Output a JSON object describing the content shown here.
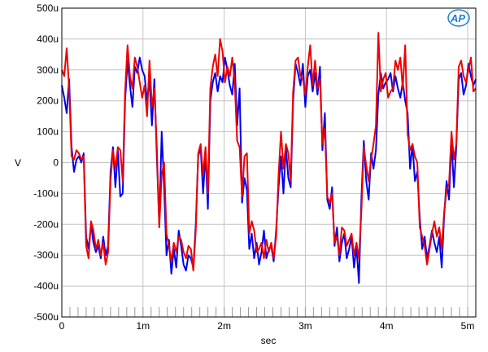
{
  "chart_data": {
    "type": "line",
    "xlabel": "sec",
    "ylabel": "V",
    "xlim": [
      0,
      0.0051
    ],
    "ylim": [
      -0.0005,
      0.0005
    ],
    "grid": true,
    "x_ticks": [
      {
        "value": 0,
        "label": "0"
      },
      {
        "value": 0.001,
        "label": "1m"
      },
      {
        "value": 0.002,
        "label": "2m"
      },
      {
        "value": 0.003,
        "label": "3m"
      },
      {
        "value": 0.004,
        "label": "4m"
      },
      {
        "value": 0.005,
        "label": "5m"
      }
    ],
    "y_ticks": [
      {
        "value": 0.0005,
        "label": "500u"
      },
      {
        "value": 0.0004,
        "label": "400u"
      },
      {
        "value": 0.0003,
        "label": "300u"
      },
      {
        "value": 0.0002,
        "label": "200u"
      },
      {
        "value": 0.0001,
        "label": "100u"
      },
      {
        "value": 0,
        "label": "0"
      },
      {
        "value": -0.0001,
        "label": "-100u"
      },
      {
        "value": -0.0002,
        "label": "-200u"
      },
      {
        "value": -0.0003,
        "label": "-300u"
      },
      {
        "value": -0.0004,
        "label": "-400u"
      },
      {
        "value": -0.0005,
        "label": "-500u"
      }
    ],
    "series": [
      {
        "color": "#0000ee",
        "x": [
          0,
          3e-05,
          6e-05,
          9e-05,
          0.00012,
          0.00015,
          0.00018,
          0.00021,
          0.00024,
          0.00027,
          0.0003,
          0.00033,
          0.00036,
          0.00039,
          0.00042,
          0.00045,
          0.00048,
          0.00051,
          0.00054,
          0.00057,
          0.0006,
          0.00063,
          0.00066,
          0.00069,
          0.00072,
          0.00075,
          0.00078,
          0.00081,
          0.00084,
          0.00087,
          0.0009,
          0.00093,
          0.00096,
          0.00099,
          0.00102,
          0.00105,
          0.00108,
          0.00111,
          0.00114,
          0.00117,
          0.0012,
          0.00123,
          0.00126,
          0.00129,
          0.00132,
          0.00135,
          0.00138,
          0.00141,
          0.00144,
          0.00147,
          0.0015,
          0.00153,
          0.00156,
          0.00159,
          0.00162,
          0.00165,
          0.00168,
          0.00171,
          0.00174,
          0.00177,
          0.0018,
          0.00183,
          0.00186,
          0.00189,
          0.00192,
          0.00195,
          0.00198,
          0.00201,
          0.00204,
          0.00207,
          0.0021,
          0.00213,
          0.00216,
          0.00219,
          0.00222,
          0.00225,
          0.00228,
          0.00231,
          0.00234,
          0.00237,
          0.0024,
          0.00243,
          0.00246,
          0.00249,
          0.00252,
          0.00255,
          0.00258,
          0.00261,
          0.00264,
          0.00267,
          0.0027,
          0.00273,
          0.00276,
          0.00279,
          0.00282,
          0.00285,
          0.00288,
          0.00291,
          0.00294,
          0.00297,
          0.003,
          0.00303,
          0.00306,
          0.00309,
          0.00312,
          0.00315,
          0.00318,
          0.00321,
          0.00324,
          0.00327,
          0.0033,
          0.00333,
          0.00336,
          0.00339,
          0.00342,
          0.00345,
          0.00348,
          0.00351,
          0.00354,
          0.00357,
          0.0036,
          0.00363,
          0.00366,
          0.00369,
          0.00372,
          0.00375,
          0.00378,
          0.00381,
          0.00384,
          0.00387,
          0.0039,
          0.00393,
          0.00396,
          0.00399,
          0.00402,
          0.00405,
          0.00408,
          0.00411,
          0.00414,
          0.00417,
          0.0042,
          0.00423,
          0.00426,
          0.00429,
          0.00432,
          0.00435,
          0.00438,
          0.00441,
          0.00444,
          0.00447,
          0.0045,
          0.00453,
          0.00456,
          0.00459,
          0.00462,
          0.00465,
          0.00468,
          0.00471,
          0.00474,
          0.00477,
          0.0048,
          0.00483,
          0.00486,
          0.00489,
          0.00492,
          0.00495,
          0.00498,
          0.00501,
          0.00504,
          0.00507,
          0.0051
        ],
        "y": [
          0.00025,
          0.00021,
          0.00016,
          0.00027,
          5e-05,
          -3e-05,
          1e-05,
          2e-05,
          0,
          3e-05,
          -0.00024,
          -0.00028,
          -0.0002,
          -0.00026,
          -0.00029,
          -0.00027,
          -0.00031,
          -0.00024,
          -0.0003,
          -0.00027,
          -3e-05,
          5e-05,
          -8e-05,
          4e-05,
          -0.00011,
          -0.0001,
          0.0002,
          0.00033,
          0.00025,
          0.00018,
          0.00031,
          0.00029,
          0.00034,
          0.0003,
          0.00028,
          0.0002,
          0.00027,
          0.00012,
          0.00027,
          2e-05,
          -0.0002,
          0.0001,
          -8e-05,
          -0.0003,
          -0.00025,
          -0.00036,
          -0.00028,
          -0.00034,
          -0.00022,
          -0.00027,
          -0.00033,
          -0.00035,
          -0.0003,
          -0.00031,
          -0.00034,
          -0.0002,
          2e-05,
          5e-05,
          -0.0001,
          3e-05,
          -0.00015,
          0.0002,
          0.00026,
          0.00029,
          0.00023,
          0.00028,
          0.00026,
          0.00034,
          0.0003,
          0.00025,
          0.00022,
          0.00032,
          0.00012,
          0.00024,
          -0.00013,
          -5e-05,
          -9e-05,
          -0.00028,
          -0.00023,
          -0.00031,
          -0.00026,
          -0.00033,
          -0.00029,
          -0.00022,
          -0.00031,
          -0.00028,
          -0.00027,
          -0.00032,
          -0.00022,
          -8e-05,
          2e-05,
          -0.0001,
          5e-05,
          -5e-05,
          -8e-05,
          0.0002,
          0.00032,
          0.00029,
          0.00025,
          0.00032,
          0.00018,
          0.00028,
          0.0003,
          0.00023,
          0.00029,
          0.00022,
          0.00031,
          4e-05,
          0.00016,
          -0.00012,
          -0.00015,
          -8e-05,
          -0.00027,
          -0.00021,
          -0.00032,
          -0.00026,
          -0.00023,
          -0.00031,
          -0.00028,
          -0.00024,
          -0.00034,
          -0.00027,
          -0.00039,
          -0.00012,
          7e-05,
          -6e-05,
          -0.00012,
          3e-05,
          -2e-05,
          4e-05,
          0.00022,
          0.00029,
          0.00024,
          0.00026,
          0.00027,
          0.00029,
          0.00023,
          0.00028,
          0.00024,
          0.00021,
          0.00026,
          0.0002,
          0.00016,
          -2e-05,
          6e-05,
          -6e-05,
          -3e-05,
          -0.00018,
          -0.00028,
          -0.00024,
          -0.00031,
          -0.00027,
          -0.00022,
          -0.00026,
          -0.00029,
          -0.00024,
          -0.00034,
          -0.00017,
          -6e-05,
          -0.00012,
          7e-05,
          -8e-05,
          5e-05,
          0.00027,
          0.00029,
          0.00022,
          0.00025,
          0.00032,
          0.00028,
          0.00025,
          0.00027
        ]
      },
      {
        "color": "#ee0000",
        "x": [
          0,
          3e-05,
          6e-05,
          9e-05,
          0.00012,
          0.00015,
          0.00018,
          0.00021,
          0.00024,
          0.00027,
          0.0003,
          0.00033,
          0.00036,
          0.00039,
          0.00042,
          0.00045,
          0.00048,
          0.00051,
          0.00054,
          0.00057,
          0.0006,
          0.00063,
          0.00066,
          0.00069,
          0.00072,
          0.00075,
          0.00078,
          0.00081,
          0.00084,
          0.00087,
          0.0009,
          0.00093,
          0.00096,
          0.00099,
          0.00102,
          0.00105,
          0.00108,
          0.00111,
          0.00114,
          0.00117,
          0.0012,
          0.00123,
          0.00126,
          0.00129,
          0.00132,
          0.00135,
          0.00138,
          0.00141,
          0.00144,
          0.00147,
          0.0015,
          0.00153,
          0.00156,
          0.00159,
          0.00162,
          0.00165,
          0.00168,
          0.00171,
          0.00174,
          0.00177,
          0.0018,
          0.00183,
          0.00186,
          0.00189,
          0.00192,
          0.00195,
          0.00198,
          0.00201,
          0.00204,
          0.00207,
          0.0021,
          0.00213,
          0.00216,
          0.00219,
          0.00222,
          0.00225,
          0.00228,
          0.00231,
          0.00234,
          0.00237,
          0.0024,
          0.00243,
          0.00246,
          0.00249,
          0.00252,
          0.00255,
          0.00258,
          0.00261,
          0.00264,
          0.00267,
          0.0027,
          0.00273,
          0.00276,
          0.00279,
          0.00282,
          0.00285,
          0.00288,
          0.00291,
          0.00294,
          0.00297,
          0.003,
          0.00303,
          0.00306,
          0.00309,
          0.00312,
          0.00315,
          0.00318,
          0.00321,
          0.00324,
          0.00327,
          0.0033,
          0.00333,
          0.00336,
          0.00339,
          0.00342,
          0.00345,
          0.00348,
          0.00351,
          0.00354,
          0.00357,
          0.0036,
          0.00363,
          0.00366,
          0.00369,
          0.00372,
          0.00375,
          0.00378,
          0.00381,
          0.00384,
          0.00387,
          0.0039,
          0.00393,
          0.00396,
          0.00399,
          0.00402,
          0.00405,
          0.00408,
          0.00411,
          0.00414,
          0.00417,
          0.0042,
          0.00423,
          0.00426,
          0.00429,
          0.00432,
          0.00435,
          0.00438,
          0.00441,
          0.00444,
          0.00447,
          0.0045,
          0.00453,
          0.00456,
          0.00459,
          0.00462,
          0.00465,
          0.00468,
          0.00471,
          0.00474,
          0.00477,
          0.0048,
          0.00483,
          0.00486,
          0.00489,
          0.00492,
          0.00495,
          0.00498,
          0.00501,
          0.00504,
          0.00507,
          0.0051
        ],
        "y": [
          0.0003,
          0.00028,
          0.00037,
          0.00024,
          2e-05,
          1e-05,
          4e-05,
          3e-05,
          1e-05,
          2e-05,
          -0.00027,
          -0.00031,
          -0.00019,
          -0.00022,
          -0.00028,
          -0.00025,
          -0.0003,
          -0.00026,
          -0.00033,
          -0.00029,
          -6e-05,
          4e-05,
          -2e-05,
          5e-05,
          4e-05,
          -6e-05,
          0.00023,
          0.00038,
          0.00028,
          0.00024,
          0.00034,
          0.00031,
          0.00026,
          0.00021,
          0.00025,
          0.00015,
          0.00033,
          0.00018,
          0.00024,
          5e-05,
          -0.00021,
          -4e-05,
          0,
          -0.00023,
          -0.00027,
          -0.00032,
          -0.00026,
          -0.00029,
          -0.00024,
          -0.00025,
          -0.00029,
          -0.00031,
          -0.00027,
          -0.00028,
          -0.00035,
          -0.00022,
          3e-05,
          6e-05,
          -4e-05,
          5e-05,
          -0.0001,
          0.00024,
          0.00031,
          0.00035,
          0.00028,
          0.0004,
          0.00036,
          0.00026,
          0.00031,
          0.00028,
          0.00034,
          0.00026,
          7e-05,
          5e-05,
          -0.00011,
          2e-05,
          3e-05,
          -0.00023,
          -0.00019,
          -0.00022,
          -0.00029,
          -0.00028,
          -0.00026,
          -0.00031,
          -0.00025,
          -0.00029,
          -0.00026,
          -0.00031,
          -0.00024,
          -4e-05,
          0.0001,
          -2e-05,
          6e-05,
          3e-05,
          -6e-05,
          0.00023,
          0.00033,
          0.00034,
          0.00028,
          0.00027,
          0.00022,
          0.00031,
          0.00038,
          0.00025,
          0.00033,
          0.00024,
          0.00027,
          6e-05,
          0.00011,
          -0.00011,
          -0.00013,
          -0.0001,
          -0.00026,
          -0.00024,
          -0.0003,
          -0.00021,
          -0.00022,
          -0.00027,
          -0.00025,
          -0.00023,
          -0.0003,
          -0.00026,
          -0.00031,
          -0.00016,
          5e-05,
          -1e-05,
          -6e-05,
          1e-05,
          6e-05,
          0.00012,
          0.00042,
          0.00023,
          0.00027,
          0.00029,
          0.00021,
          0.00023,
          0.00024,
          0.00033,
          0.0003,
          0.00034,
          0.00024,
          0.00038,
          9e-05,
          4e-05,
          6e-05,
          2e-05,
          0,
          -0.00021,
          -0.00024,
          -0.00027,
          -0.00033,
          -0.00028,
          -0.00023,
          -0.00019,
          -0.00024,
          -0.00021,
          -0.00028,
          -0.00016,
          -9e-05,
          -7e-05,
          0.0001,
          1e-05,
          6e-05,
          0.00031,
          0.00033,
          0.00028,
          0.00026,
          0.0003,
          0.00034,
          0.00023,
          0.00024
        ]
      }
    ]
  },
  "logo": {
    "text": "AP",
    "color": "#1f7fd6"
  }
}
